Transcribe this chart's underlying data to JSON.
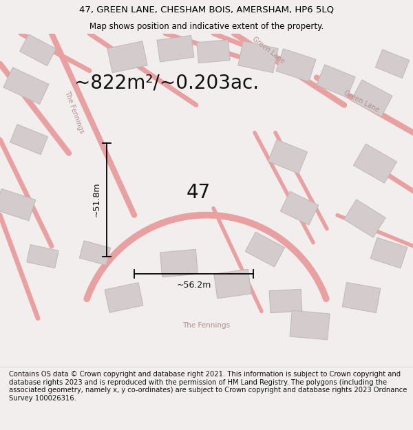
{
  "title_line1": "47, GREEN LANE, CHESHAM BOIS, AMERSHAM, HP6 5LQ",
  "title_line2": "Map shows position and indicative extent of the property.",
  "area_text": "~822m²/~0.203ac.",
  "property_number": "47",
  "dim_width": "~56.2m",
  "dim_height": "~51.8m",
  "footer_text": "Contains OS data © Crown copyright and database right 2021. This information is subject to Crown copyright and database rights 2023 and is reproduced with the permission of HM Land Registry. The polygons (including the associated geometry, namely x, y co-ordinates) are subject to Crown copyright and database rights 2023 Ordnance Survey 100026316.",
  "bg_color": "#f2eeee",
  "map_bg": "#f5f0f0",
  "plot_color": "#e8000000",
  "plot_linewidth": 2.0,
  "road_color": "#e8a0a0",
  "building_color": "#d4cccc",
  "building_edge": "#c0b8b8",
  "title_fontsize": 9.5,
  "subtitle_fontsize": 8.5,
  "area_fontsize": 20,
  "number_fontsize": 20,
  "dim_fontsize": 9,
  "footer_fontsize": 7.2,
  "figsize": [
    6.0,
    6.25
  ],
  "dpi": 100
}
